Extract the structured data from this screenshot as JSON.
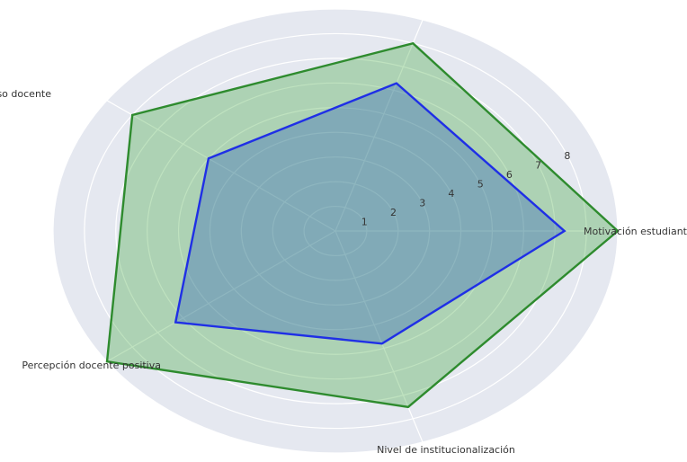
{
  "chart_data": {
    "type": "radar",
    "categories": [
      "Motivación estudiantil",
      "",
      "Frecuencia de uso docente",
      "Percepción docente positiva",
      "Nivel de institucionalización"
    ],
    "series": [
      {
        "values": [
          9.0,
          8.0,
          8.0,
          9.0,
          7.5
        ],
        "color": "#2e8b2e",
        "fill": "#2ca02c"
      },
      {
        "values": [
          7.3,
          6.3,
          5.0,
          6.3,
          4.8
        ],
        "color": "#1f2fe6",
        "fill": "#1f4fbf"
      }
    ],
    "rticks": [
      "1",
      "2",
      "3",
      "4",
      "5",
      "6",
      "7",
      "8"
    ],
    "rlim": [
      0,
      9
    ],
    "background": "#e5e8f0",
    "grid": true
  }
}
